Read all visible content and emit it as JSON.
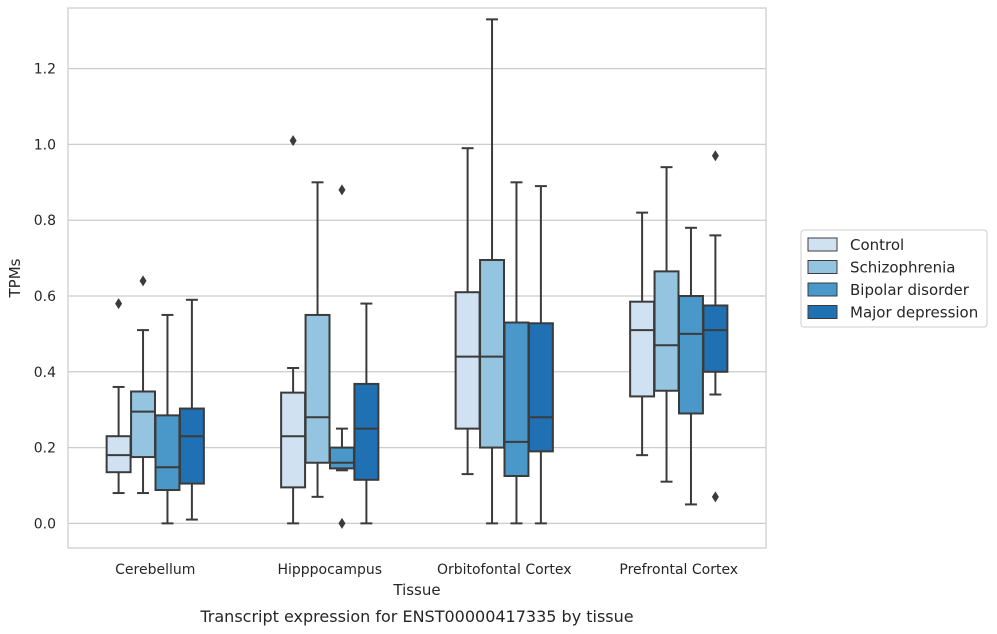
{
  "chart_data": {
    "type": "box",
    "xlabel": "Tissue",
    "ylabel": "TPMs",
    "caption": "Transcript expression for ENST00000417335 by tissue",
    "categories": [
      "Cerebellum",
      "Hipppocampus",
      "Orbitofontal Cortex",
      "Prefrontal Cortex"
    ],
    "ylim": [
      -0.065,
      1.36
    ],
    "yticks": [
      0.0,
      0.2,
      0.4,
      0.6,
      0.8,
      1.0,
      1.2
    ],
    "ytick_labels": [
      "0.0",
      "0.2",
      "0.4",
      "0.6",
      "0.8",
      "1.0",
      "1.2"
    ],
    "grid": true,
    "legend_position": "center-right",
    "series": [
      {
        "name": "Control",
        "color": "#d0e1f2",
        "boxes": [
          {
            "whislo": 0.08,
            "q1": 0.135,
            "med": 0.18,
            "q3": 0.23,
            "whishi": 0.36,
            "fliers": [
              0.58
            ]
          },
          {
            "whislo": 0.0,
            "q1": 0.095,
            "med": 0.23,
            "q3": 0.345,
            "whishi": 0.41,
            "fliers": [
              1.01
            ]
          },
          {
            "whislo": 0.13,
            "q1": 0.25,
            "med": 0.44,
            "q3": 0.61,
            "whishi": 0.99,
            "fliers": []
          },
          {
            "whislo": 0.18,
            "q1": 0.335,
            "med": 0.51,
            "q3": 0.585,
            "whishi": 0.82,
            "fliers": []
          }
        ]
      },
      {
        "name": "Schizophrenia",
        "color": "#94c4df",
        "boxes": [
          {
            "whislo": 0.08,
            "q1": 0.175,
            "med": 0.295,
            "q3": 0.348,
            "whishi": 0.51,
            "fliers": [
              0.64
            ]
          },
          {
            "whislo": 0.07,
            "q1": 0.16,
            "med": 0.28,
            "q3": 0.55,
            "whishi": 0.9,
            "fliers": []
          },
          {
            "whislo": 0.0,
            "q1": 0.2,
            "med": 0.44,
            "q3": 0.695,
            "whishi": 1.33,
            "fliers": []
          },
          {
            "whislo": 0.11,
            "q1": 0.35,
            "med": 0.47,
            "q3": 0.665,
            "whishi": 0.94,
            "fliers": []
          }
        ]
      },
      {
        "name": "Bipolar disorder",
        "color": "#4a98c9",
        "boxes": [
          {
            "whislo": 0.0,
            "q1": 0.088,
            "med": 0.148,
            "q3": 0.285,
            "whishi": 0.55,
            "fliers": []
          },
          {
            "whislo": 0.14,
            "q1": 0.145,
            "med": 0.16,
            "q3": 0.2,
            "whishi": 0.25,
            "fliers": [
              0.88,
              0.0
            ]
          },
          {
            "whislo": 0.0,
            "q1": 0.125,
            "med": 0.215,
            "q3": 0.53,
            "whishi": 0.9,
            "fliers": []
          },
          {
            "whislo": 0.05,
            "q1": 0.29,
            "med": 0.5,
            "q3": 0.6,
            "whishi": 0.78,
            "fliers": []
          }
        ]
      },
      {
        "name": "Major depression",
        "color": "#2070b4",
        "boxes": [
          {
            "whislo": 0.01,
            "q1": 0.105,
            "med": 0.23,
            "q3": 0.303,
            "whishi": 0.59,
            "fliers": []
          },
          {
            "whislo": 0.0,
            "q1": 0.115,
            "med": 0.25,
            "q3": 0.368,
            "whishi": 0.58,
            "fliers": []
          },
          {
            "whislo": 0.0,
            "q1": 0.19,
            "med": 0.28,
            "q3": 0.528,
            "whishi": 0.89,
            "fliers": []
          },
          {
            "whislo": 0.34,
            "q1": 0.4,
            "med": 0.51,
            "q3": 0.575,
            "whishi": 0.76,
            "fliers": [
              0.97,
              0.07
            ]
          }
        ]
      }
    ]
  }
}
